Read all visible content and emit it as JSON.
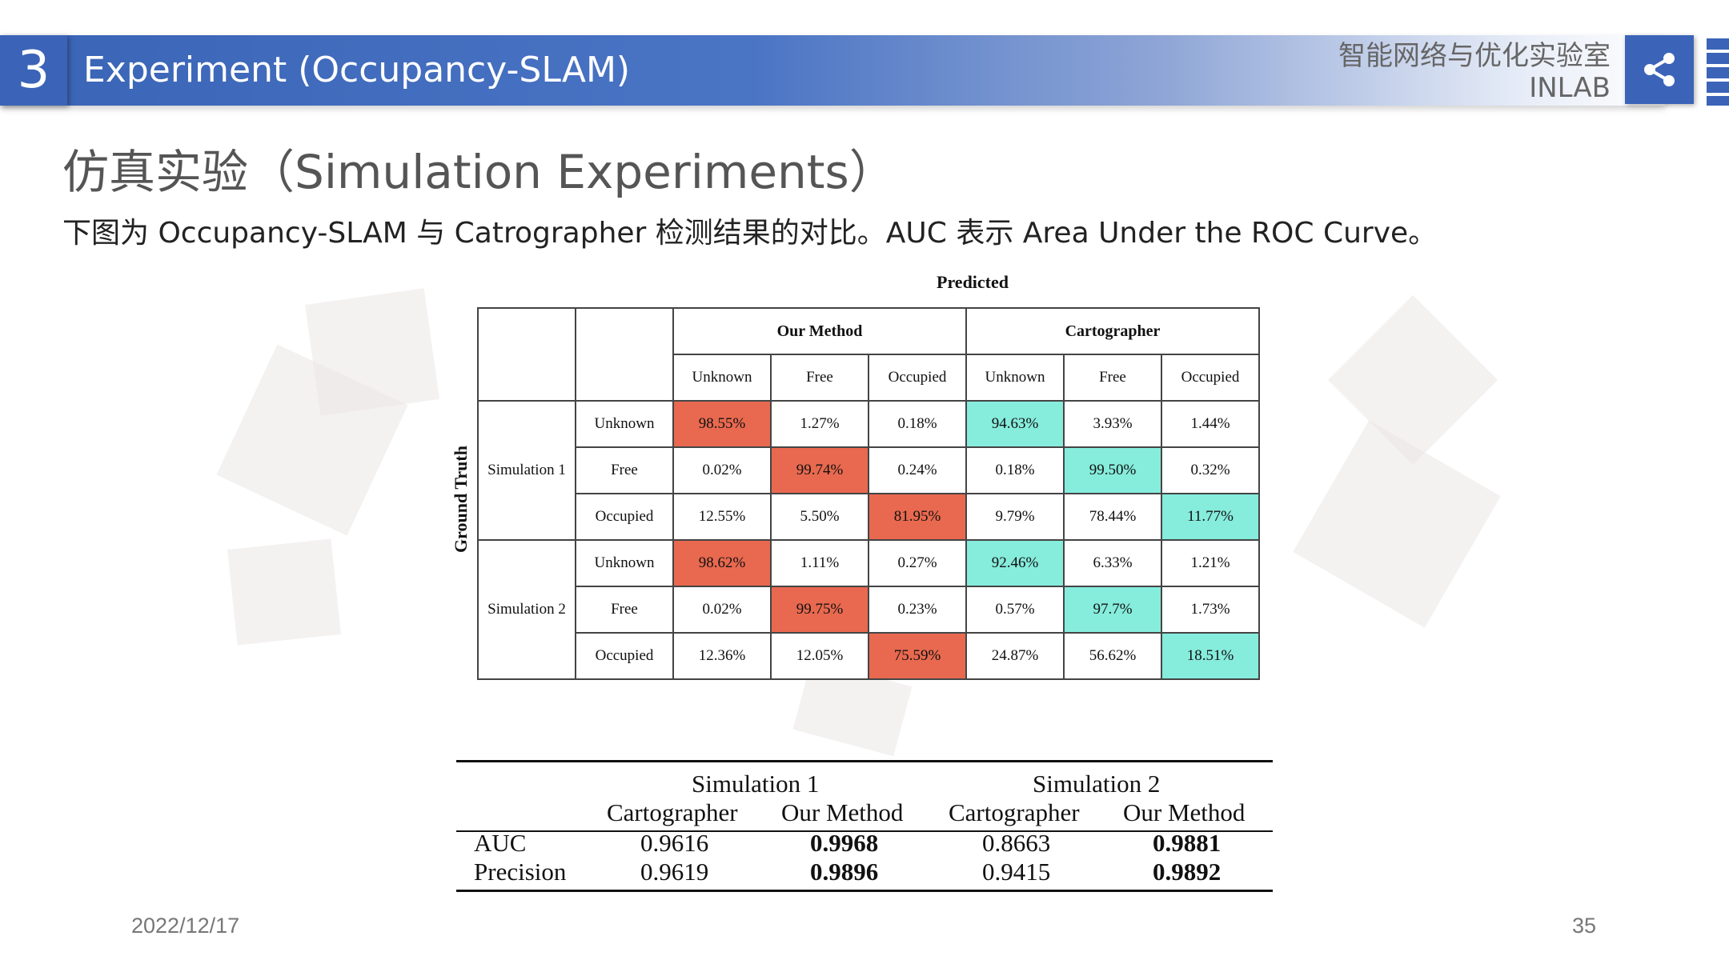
{
  "header": {
    "section_number": "3",
    "title": "Experiment (Occupancy-SLAM)",
    "lab_name_cn": "智能网络与优化实验室",
    "lab_name_en": "INLAB",
    "accent_color": "#3b64b8"
  },
  "slide": {
    "title": "仿真实验（Simulation Experiments）",
    "subtitle": "下图为 Occupancy-SLAM 与 Catrographer 检测结果的对比。AUC 表示 Area Under the ROC Curve。"
  },
  "confusion_matrix": {
    "predicted_label": "Predicted",
    "ground_truth_label": "Ground Truth",
    "method_headers": [
      "Our Method",
      "Cartographer"
    ],
    "class_headers": [
      "Unknown",
      "Free",
      "Occupied",
      "Unknown",
      "Free",
      "Occupied"
    ],
    "highlight_colors": {
      "our_method_diagonal": "#e8694f",
      "cartographer_diagonal": "#86ecdc"
    },
    "groups": [
      {
        "name": "Simulation 1",
        "rows": [
          {
            "label": "Unknown",
            "cells": [
              "98.55%",
              "1.27%",
              "0.18%",
              "94.63%",
              "3.93%",
              "1.44%"
            ]
          },
          {
            "label": "Free",
            "cells": [
              "0.02%",
              "99.74%",
              "0.24%",
              "0.18%",
              "99.50%",
              "0.32%"
            ]
          },
          {
            "label": "Occupied",
            "cells": [
              "12.55%",
              "5.50%",
              "81.95%",
              "9.79%",
              "78.44%",
              "11.77%"
            ]
          }
        ]
      },
      {
        "name": "Simulation 2",
        "rows": [
          {
            "label": "Unknown",
            "cells": [
              "98.62%",
              "1.11%",
              "0.27%",
              "92.46%",
              "6.33%",
              "1.21%"
            ]
          },
          {
            "label": "Free",
            "cells": [
              "0.02%",
              "99.75%",
              "0.23%",
              "0.57%",
              "97.7%",
              "1.73%"
            ]
          },
          {
            "label": "Occupied",
            "cells": [
              "12.36%",
              "12.05%",
              "75.59%",
              "24.87%",
              "56.62%",
              "18.51%"
            ]
          }
        ]
      }
    ]
  },
  "auc_table": {
    "group_headers": [
      "Simulation 1",
      "Simulation 2"
    ],
    "column_headers": [
      "Cartographer",
      "Our Method",
      "Cartographer",
      "Our Method"
    ],
    "rows": [
      {
        "label": "AUC",
        "values": [
          "0.9616",
          "0.9968",
          "0.8663",
          "0.9881"
        ]
      },
      {
        "label": "Precision",
        "values": [
          "0.9619",
          "0.9896",
          "0.9415",
          "0.9892"
        ]
      }
    ]
  },
  "footer": {
    "date": "2022/12/17",
    "page_number": "35"
  }
}
